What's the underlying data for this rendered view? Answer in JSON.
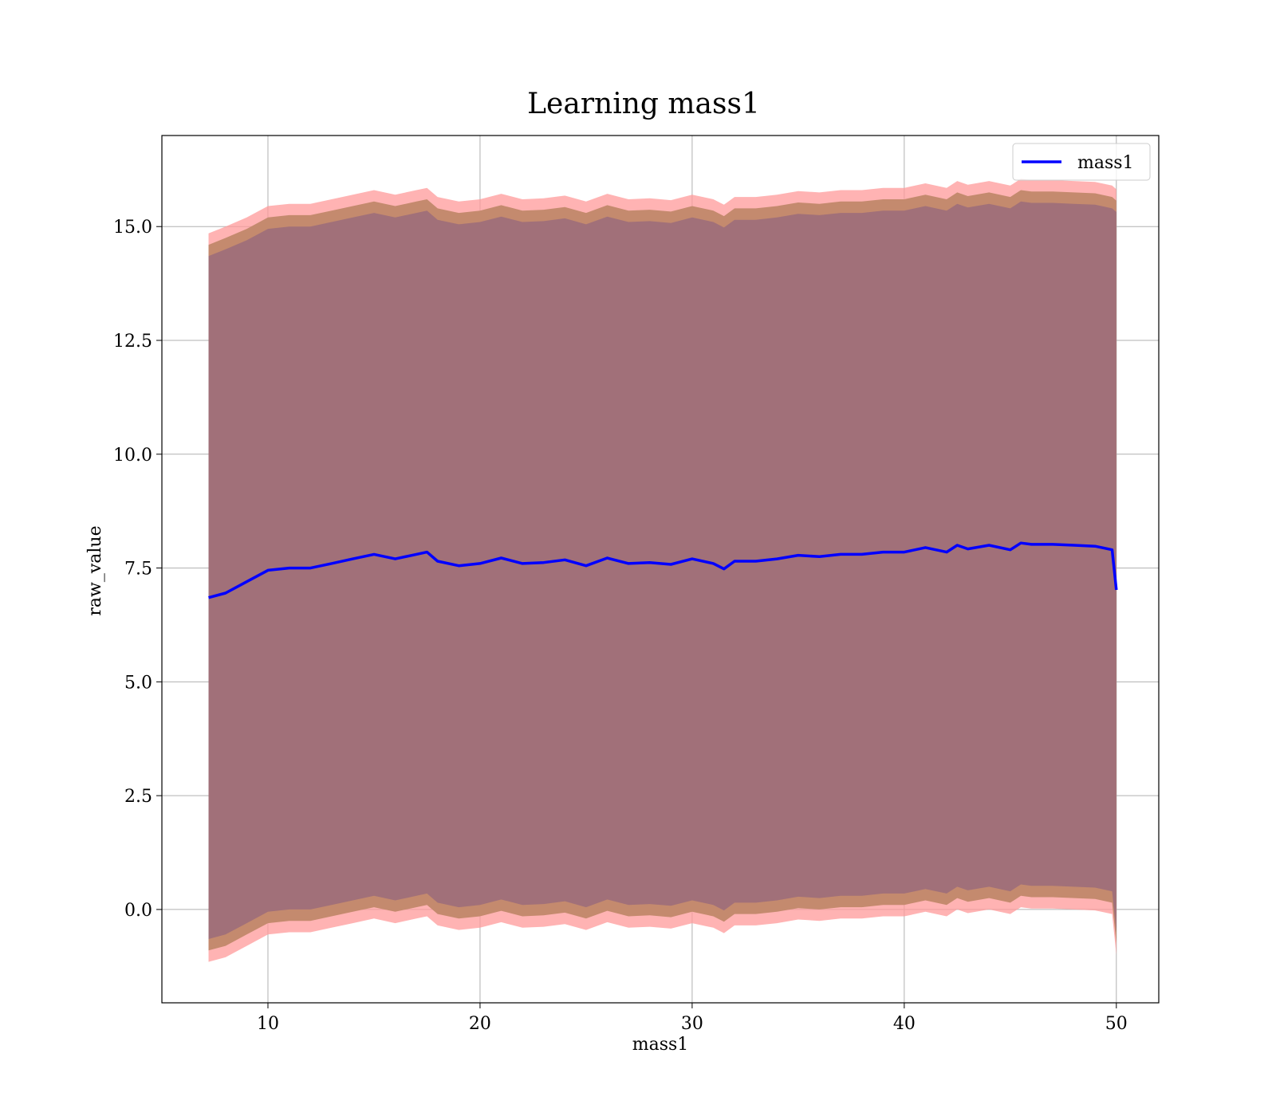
{
  "chart_data": {
    "type": "line",
    "title": "Learning mass1",
    "xlabel": "mass1",
    "ylabel": "raw_value",
    "xlim": [
      5,
      52
    ],
    "ylim": [
      -2.05,
      17.0
    ],
    "xticks": [
      10,
      20,
      30,
      40,
      50
    ],
    "xtick_labels": [
      "10",
      "20",
      "30",
      "40",
      "50"
    ],
    "yticks": [
      0.0,
      2.5,
      5.0,
      7.5,
      10.0,
      12.5,
      15.0
    ],
    "ytick_labels": [
      "0.0",
      "2.5",
      "5.0",
      "7.5",
      "10.0",
      "12.5",
      "15.0"
    ],
    "grid": true,
    "legend": {
      "position": "top-right",
      "entries": [
        "mass1"
      ]
    },
    "colors": {
      "line": "#0000ff",
      "band_outer": "#ff9999",
      "band_mid": "#c48a6e",
      "band_inner": "#a17079"
    },
    "x": [
      7.2,
      8,
      9,
      10,
      11,
      12,
      13,
      14,
      15,
      16,
      17,
      17.5,
      18,
      19,
      20,
      21,
      22,
      23,
      24,
      25,
      26,
      27,
      28,
      29,
      30,
      31,
      31.5,
      32,
      33,
      34,
      35,
      36,
      37,
      38,
      39,
      40,
      41,
      42,
      42.5,
      43,
      44,
      45,
      45.5,
      46,
      47,
      48,
      49,
      49.8,
      50
    ],
    "series": [
      {
        "name": "mass1",
        "values": [
          6.85,
          6.95,
          7.2,
          7.45,
          7.5,
          7.5,
          7.6,
          7.7,
          7.8,
          7.7,
          7.8,
          7.85,
          7.65,
          7.55,
          7.6,
          7.72,
          7.6,
          7.62,
          7.68,
          7.55,
          7.72,
          7.6,
          7.62,
          7.58,
          7.7,
          7.6,
          7.48,
          7.65,
          7.65,
          7.7,
          7.78,
          7.75,
          7.8,
          7.8,
          7.85,
          7.85,
          7.95,
          7.85,
          8.0,
          7.92,
          8.0,
          7.9,
          8.05,
          8.02,
          8.02,
          8.0,
          7.98,
          7.9,
          7.02
        ]
      }
    ],
    "band_outer": {
      "upper": [
        14.85,
        15.0,
        15.2,
        15.45,
        15.5,
        15.5,
        15.6,
        15.7,
        15.8,
        15.7,
        15.8,
        15.85,
        15.65,
        15.55,
        15.6,
        15.72,
        15.6,
        15.62,
        15.68,
        15.55,
        15.72,
        15.6,
        15.62,
        15.58,
        15.7,
        15.6,
        15.48,
        15.65,
        15.65,
        15.7,
        15.78,
        15.75,
        15.8,
        15.8,
        15.85,
        15.85,
        15.95,
        15.85,
        16.0,
        15.92,
        16.0,
        15.9,
        16.05,
        16.02,
        16.02,
        16.0,
        15.98,
        15.9,
        15.82
      ],
      "lower": [
        -1.15,
        -1.05,
        -0.8,
        -0.55,
        -0.5,
        -0.5,
        -0.4,
        -0.3,
        -0.2,
        -0.3,
        -0.2,
        -0.15,
        -0.35,
        -0.45,
        -0.4,
        -0.28,
        -0.4,
        -0.38,
        -0.32,
        -0.45,
        -0.28,
        -0.4,
        -0.38,
        -0.42,
        -0.3,
        -0.4,
        -0.52,
        -0.35,
        -0.35,
        -0.3,
        -0.22,
        -0.25,
        -0.2,
        -0.2,
        -0.15,
        -0.15,
        -0.05,
        -0.15,
        0.0,
        -0.08,
        0.0,
        -0.1,
        0.05,
        0.02,
        0.02,
        0.0,
        -0.02,
        -0.1,
        -1.0
      ]
    },
    "band_mid": {
      "upper": [
        14.6,
        14.75,
        14.95,
        15.2,
        15.25,
        15.25,
        15.35,
        15.45,
        15.55,
        15.45,
        15.55,
        15.6,
        15.4,
        15.3,
        15.35,
        15.47,
        15.35,
        15.37,
        15.43,
        15.3,
        15.47,
        15.35,
        15.37,
        15.33,
        15.45,
        15.35,
        15.23,
        15.4,
        15.4,
        15.45,
        15.53,
        15.5,
        15.55,
        15.55,
        15.6,
        15.6,
        15.7,
        15.6,
        15.75,
        15.67,
        15.75,
        15.65,
        15.8,
        15.77,
        15.77,
        15.75,
        15.73,
        15.65,
        15.57
      ],
      "lower": [
        -0.9,
        -0.8,
        -0.55,
        -0.3,
        -0.25,
        -0.25,
        -0.15,
        -0.05,
        0.05,
        -0.05,
        0.05,
        0.1,
        -0.1,
        -0.2,
        -0.15,
        -0.03,
        -0.15,
        -0.13,
        -0.07,
        -0.2,
        -0.03,
        -0.15,
        -0.13,
        -0.17,
        -0.05,
        -0.15,
        -0.27,
        -0.1,
        -0.1,
        -0.05,
        0.03,
        0.0,
        0.05,
        0.05,
        0.1,
        0.1,
        0.2,
        0.1,
        0.25,
        0.17,
        0.25,
        0.15,
        0.3,
        0.27,
        0.27,
        0.25,
        0.23,
        0.15,
        -0.75
      ]
    },
    "band_inner": {
      "upper": [
        14.35,
        14.5,
        14.7,
        14.95,
        15.0,
        15.0,
        15.1,
        15.2,
        15.3,
        15.2,
        15.3,
        15.35,
        15.15,
        15.05,
        15.1,
        15.22,
        15.1,
        15.12,
        15.18,
        15.05,
        15.22,
        15.1,
        15.12,
        15.08,
        15.2,
        15.1,
        14.98,
        15.15,
        15.15,
        15.2,
        15.28,
        15.25,
        15.3,
        15.3,
        15.35,
        15.35,
        15.45,
        15.35,
        15.5,
        15.42,
        15.5,
        15.4,
        15.55,
        15.52,
        15.52,
        15.5,
        15.48,
        15.4,
        15.32
      ],
      "lower": [
        -0.65,
        -0.55,
        -0.3,
        -0.05,
        0.0,
        0.0,
        0.1,
        0.2,
        0.3,
        0.2,
        0.3,
        0.35,
        0.15,
        0.05,
        0.1,
        0.22,
        0.1,
        0.12,
        0.18,
        0.05,
        0.22,
        0.1,
        0.12,
        0.08,
        0.2,
        0.1,
        -0.02,
        0.15,
        0.15,
        0.2,
        0.28,
        0.25,
        0.3,
        0.3,
        0.35,
        0.35,
        0.45,
        0.35,
        0.5,
        0.42,
        0.5,
        0.4,
        0.55,
        0.52,
        0.52,
        0.5,
        0.48,
        0.4,
        -0.5
      ]
    }
  }
}
